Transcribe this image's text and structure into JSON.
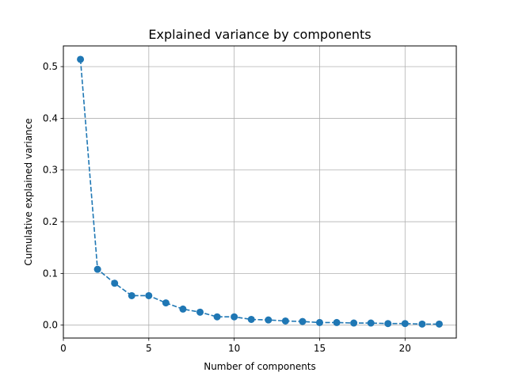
{
  "chart_data": {
    "type": "line",
    "title": "Explained variance by components",
    "xlabel": "Number of components",
    "ylabel": "Cumulative explained variance",
    "xlim": [
      0,
      23
    ],
    "ylim": [
      -0.025,
      0.54
    ],
    "xticks": [
      0,
      5,
      10,
      15,
      20
    ],
    "xtick_labels": [
      "0",
      "5",
      "10",
      "15",
      "20"
    ],
    "yticks": [
      0.0,
      0.1,
      0.2,
      0.3,
      0.4,
      0.5
    ],
    "ytick_labels": [
      "0.0",
      "0.1",
      "0.2",
      "0.3",
      "0.4",
      "0.5"
    ],
    "grid": true,
    "line_style": "dashed",
    "marker": "circle",
    "color": "#1f77b4",
    "x": [
      1,
      2,
      3,
      4,
      5,
      6,
      7,
      8,
      9,
      10,
      11,
      12,
      13,
      14,
      15,
      16,
      17,
      18,
      19,
      20,
      21,
      22
    ],
    "y": [
      0.514,
      0.108,
      0.081,
      0.057,
      0.057,
      0.043,
      0.031,
      0.025,
      0.016,
      0.016,
      0.011,
      0.01,
      0.008,
      0.007,
      0.005,
      0.005,
      0.004,
      0.004,
      0.003,
      0.003,
      0.002,
      0.002
    ]
  }
}
